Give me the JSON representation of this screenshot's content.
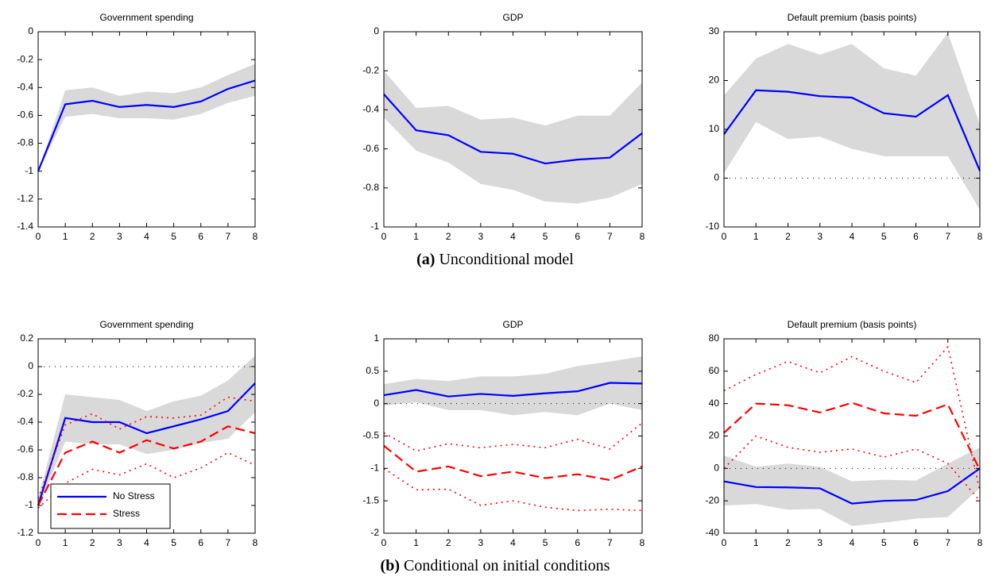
{
  "chart_data": [
    {
      "type": "line",
      "title": "Government spending",
      "x": [
        0,
        1,
        2,
        3,
        4,
        5,
        6,
        7,
        8
      ],
      "xlim": [
        0,
        8
      ],
      "xticks": [
        0,
        1,
        2,
        3,
        4,
        5,
        6,
        7,
        8
      ],
      "ylim": [
        -1.4,
        0
      ],
      "yticks": [
        -1.4,
        -1.2,
        -1,
        -0.8,
        -0.6,
        -0.4,
        -0.2,
        0
      ],
      "bands": [
        {
          "color": "#d9d9d9",
          "lower": [
            -1,
            -0.61,
            -0.59,
            -0.62,
            -0.62,
            -0.63,
            -0.59,
            -0.51,
            -0.46
          ],
          "upper": [
            -1,
            -0.42,
            -0.4,
            -0.46,
            -0.43,
            -0.44,
            -0.4,
            -0.31,
            -0.23
          ]
        }
      ],
      "series": [
        {
          "color": "#0000ff",
          "style": "solid",
          "values": [
            -1,
            -0.52,
            -0.495,
            -0.54,
            -0.525,
            -0.54,
            -0.5,
            -0.41,
            -0.35
          ]
        }
      ]
    },
    {
      "type": "line",
      "title": "GDP",
      "x": [
        0,
        1,
        2,
        3,
        4,
        5,
        6,
        7,
        8
      ],
      "xlim": [
        0,
        8
      ],
      "xticks": [
        0,
        1,
        2,
        3,
        4,
        5,
        6,
        7,
        8
      ],
      "ylim": [
        -1,
        0
      ],
      "yticks": [
        -1,
        -0.8,
        -0.6,
        -0.4,
        -0.2,
        0
      ],
      "bands": [
        {
          "color": "#d9d9d9",
          "lower": [
            -0.44,
            -0.61,
            -0.67,
            -0.78,
            -0.81,
            -0.87,
            -0.88,
            -0.85,
            -0.78
          ],
          "upper": [
            -0.2,
            -0.39,
            -0.38,
            -0.45,
            -0.44,
            -0.48,
            -0.43,
            -0.43,
            -0.26
          ]
        }
      ],
      "series": [
        {
          "color": "#0000ff",
          "style": "solid",
          "values": [
            -0.32,
            -0.505,
            -0.53,
            -0.615,
            -0.625,
            -0.675,
            -0.655,
            -0.645,
            -0.52
          ]
        }
      ]
    },
    {
      "type": "line",
      "title": "Default premium (basis points)",
      "x": [
        0,
        1,
        2,
        3,
        4,
        5,
        6,
        7,
        8
      ],
      "xlim": [
        0,
        8
      ],
      "xticks": [
        0,
        1,
        2,
        3,
        4,
        5,
        6,
        7,
        8
      ],
      "ylim": [
        -10,
        30
      ],
      "yticks": [
        -10,
        0,
        10,
        20,
        30
      ],
      "hline": 0,
      "bands": [
        {
          "color": "#d9d9d9",
          "lower": [
            1,
            11.5,
            8,
            8.5,
            6,
            4.5,
            4.5,
            4.5,
            -6.5
          ],
          "upper": [
            17,
            24.5,
            27.5,
            25.3,
            27.5,
            22.5,
            21,
            29.8,
            11
          ]
        }
      ],
      "series": [
        {
          "color": "#0000ff",
          "style": "solid",
          "values": [
            9,
            18,
            17.7,
            16.8,
            16.5,
            13.3,
            12.6,
            17,
            1.5
          ]
        }
      ]
    },
    {
      "type": "line",
      "title": "Government spending",
      "x": [
        0,
        1,
        2,
        3,
        4,
        5,
        6,
        7,
        8
      ],
      "xlim": [
        0,
        8
      ],
      "xticks": [
        0,
        1,
        2,
        3,
        4,
        5,
        6,
        7,
        8
      ],
      "ylim": [
        -1.2,
        0.2
      ],
      "yticks": [
        -1.2,
        -1,
        -0.8,
        -0.6,
        -0.4,
        -0.2,
        0,
        0.2
      ],
      "hline": 0,
      "legend": "lower left",
      "bands": [
        {
          "color": "#d9d9d9",
          "lower": [
            -1.02,
            -0.54,
            -0.56,
            -0.56,
            -0.63,
            -0.6,
            -0.55,
            -0.52,
            -0.33
          ],
          "upper": [
            -0.95,
            -0.2,
            -0.22,
            -0.24,
            -0.32,
            -0.25,
            -0.21,
            -0.1,
            0.08
          ]
        }
      ],
      "series": [
        {
          "name": "No Stress",
          "color": "#0000ff",
          "style": "solid",
          "values": [
            -1,
            -0.37,
            -0.4,
            -0.4,
            -0.48,
            -0.43,
            -0.38,
            -0.32,
            -0.12
          ]
        },
        {
          "name": "Stress",
          "color": "#ff0000",
          "style": "dashed",
          "values": [
            -1,
            -0.62,
            -0.54,
            -0.62,
            -0.53,
            -0.59,
            -0.54,
            -0.43,
            -0.48
          ]
        },
        {
          "color": "#ff0000",
          "style": "dotted",
          "values": [
            -0.95,
            -0.42,
            -0.34,
            -0.45,
            -0.36,
            -0.37,
            -0.35,
            -0.22,
            -0.25
          ]
        },
        {
          "color": "#ff0000",
          "style": "dotted",
          "values": [
            -1.02,
            -0.84,
            -0.74,
            -0.78,
            -0.7,
            -0.8,
            -0.73,
            -0.62,
            -0.71
          ]
        }
      ]
    },
    {
      "type": "line",
      "title": "GDP",
      "x": [
        0,
        1,
        2,
        3,
        4,
        5,
        6,
        7,
        8
      ],
      "xlim": [
        0,
        8
      ],
      "xticks": [
        0,
        1,
        2,
        3,
        4,
        5,
        6,
        7,
        8
      ],
      "ylim": [
        -2,
        1
      ],
      "yticks": [
        -2,
        -1.5,
        -1,
        -0.5,
        0,
        0.5,
        1
      ],
      "hline": 0,
      "bands": [
        {
          "color": "#d9d9d9",
          "lower": [
            -0.03,
            0.02,
            -0.1,
            -0.1,
            -0.18,
            -0.13,
            -0.18,
            0,
            -0.1
          ],
          "upper": [
            0.3,
            0.38,
            0.35,
            0.42,
            0.42,
            0.46,
            0.58,
            0.65,
            0.73
          ]
        }
      ],
      "series": [
        {
          "color": "#0000ff",
          "style": "solid",
          "values": [
            0.13,
            0.21,
            0.11,
            0.15,
            0.12,
            0.16,
            0.19,
            0.32,
            0.31
          ]
        },
        {
          "color": "#ff0000",
          "style": "dashed",
          "values": [
            -0.65,
            -1.05,
            -0.97,
            -1.12,
            -1.05,
            -1.15,
            -1.09,
            -1.18,
            -0.97
          ]
        },
        {
          "color": "#ff0000",
          "style": "dotted",
          "values": [
            -0.45,
            -0.73,
            -0.62,
            -0.68,
            -0.63,
            -0.68,
            -0.55,
            -0.7,
            -0.3
          ]
        },
        {
          "color": "#ff0000",
          "style": "dotted",
          "values": [
            -1,
            -1.33,
            -1.32,
            -1.57,
            -1.5,
            -1.6,
            -1.65,
            -1.63,
            -1.65
          ]
        }
      ]
    },
    {
      "type": "line",
      "title": "Default premium (basis points)",
      "x": [
        0,
        1,
        2,
        3,
        4,
        5,
        6,
        7,
        8
      ],
      "xlim": [
        0,
        8
      ],
      "xticks": [
        0,
        1,
        2,
        3,
        4,
        5,
        6,
        7,
        8
      ],
      "ylim": [
        -40,
        80
      ],
      "yticks": [
        -40,
        -20,
        0,
        20,
        40,
        60,
        80
      ],
      "hline": 0,
      "bands": [
        {
          "color": "#d9d9d9",
          "lower": [
            -23,
            -22,
            -25.5,
            -25,
            -35.5,
            -33.5,
            -31,
            -30,
            -12
          ],
          "upper": [
            8,
            1,
            3,
            1,
            -8,
            -7,
            -7.5,
            3,
            13
          ]
        }
      ],
      "series": [
        {
          "color": "#0000ff",
          "style": "solid",
          "values": [
            -8,
            -11.5,
            -11.7,
            -12.3,
            -21.7,
            -20,
            -19.5,
            -14,
            0
          ]
        },
        {
          "color": "#ff0000",
          "style": "dashed",
          "values": [
            22,
            40,
            39,
            34.5,
            40.5,
            34,
            32.5,
            39.5,
            -1
          ]
        },
        {
          "color": "#ff0000",
          "style": "dotted",
          "values": [
            48,
            58,
            66,
            59,
            69,
            60,
            53,
            75,
            -14
          ]
        },
        {
          "color": "#ff0000",
          "style": "dotted",
          "values": [
            0,
            20,
            13,
            10,
            12,
            7,
            12,
            3,
            -20
          ]
        }
      ]
    }
  ],
  "captions": [
    {
      "label": "(a)",
      "text": "Unconditional model"
    },
    {
      "label": "(b)",
      "text": "Conditional on initial conditions"
    }
  ]
}
